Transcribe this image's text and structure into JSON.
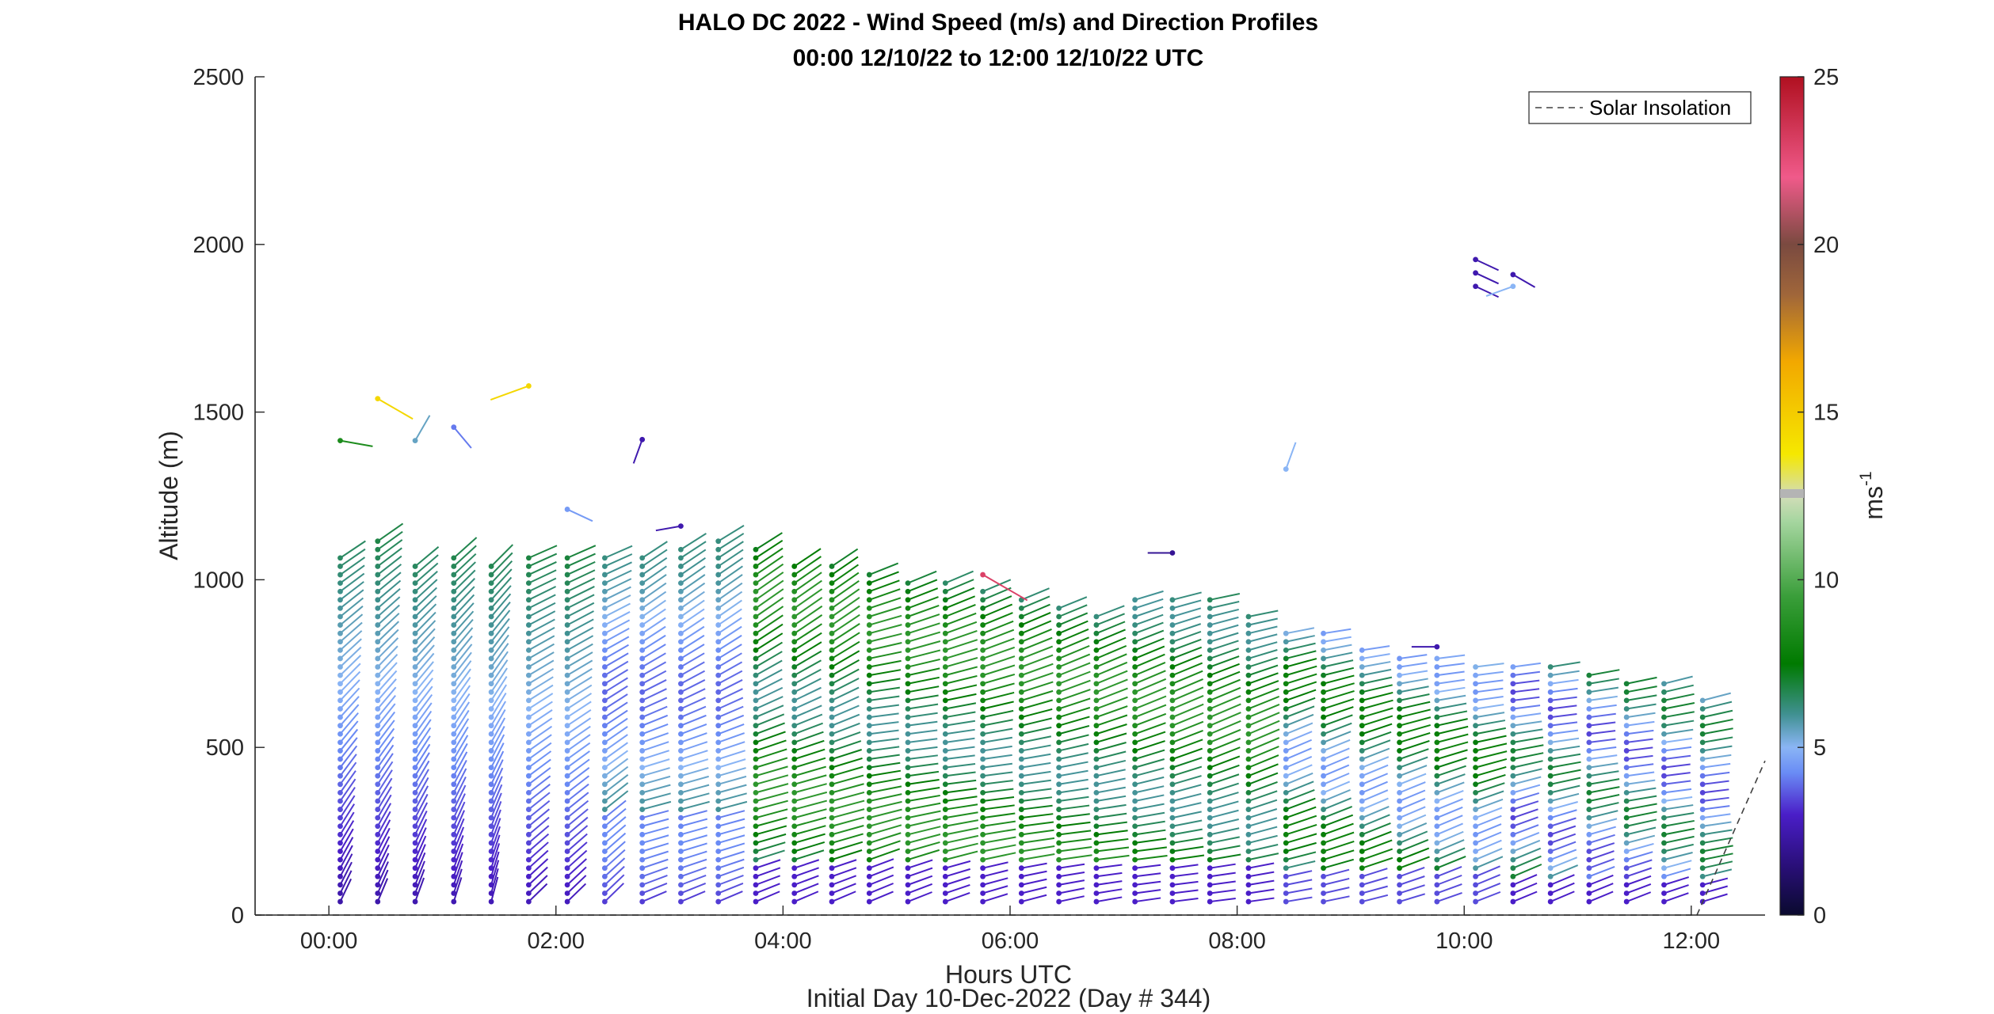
{
  "chart_data": {
    "type": "wind-barb-profile",
    "title": "HALO DC 2022 - Wind Speed (m/s) and Direction Profiles",
    "subtitle": "00:00 12/10/22 to 12:00 12/10/22  UTC",
    "xlabel": "Hours UTC",
    "xlabel2": "Initial Day 10-Dec-2022 (Day # 344)",
    "ylabel": "Altitude (m)",
    "colorbar_label_base": "ms",
    "colorbar_label_exp": "-1",
    "x_ticks": [
      "00:00",
      "02:00",
      "04:00",
      "06:00",
      "08:00",
      "10:00",
      "12:00"
    ],
    "x_tick_values": [
      0,
      2,
      4,
      6,
      8,
      10,
      12
    ],
    "xlim": [
      -0.65,
      12.65
    ],
    "y_ticks": [
      "0",
      "500",
      "1000",
      "1500",
      "2000",
      "2500"
    ],
    "y_tick_values": [
      0,
      500,
      1000,
      1500,
      2000,
      2500
    ],
    "ylim": [
      0,
      2500
    ],
    "colorbar_ticks": [
      "0",
      "5",
      "10",
      "15",
      "20",
      "25"
    ],
    "colorbar_tick_values": [
      0,
      5,
      10,
      15,
      20,
      25
    ],
    "colorbar_range": [
      0,
      25
    ],
    "legend": {
      "position": "top-right",
      "entries": [
        {
          "label": "Solar Insolation",
          "style": "dashed",
          "color": "#404040"
        }
      ]
    },
    "series": [
      {
        "name": "Solar Insolation",
        "type": "line",
        "style": "dashed",
        "x": [
          -0.65,
          12.05,
          12.65
        ],
        "y": [
          0,
          0,
          460
        ]
      }
    ],
    "profile_times": [
      0.1,
      0.43,
      0.76,
      1.1,
      1.43,
      1.76,
      2.1,
      2.43,
      2.76,
      3.1,
      3.43,
      3.76,
      4.1,
      4.43,
      4.76,
      5.1,
      5.43,
      5.76,
      6.1,
      6.43,
      6.76,
      7.1,
      7.43,
      7.76,
      8.1,
      8.43,
      8.76,
      9.1,
      9.43,
      9.76,
      10.1,
      10.43,
      10.76,
      11.1,
      11.43,
      11.76,
      12.1
    ],
    "profile_tops": [
      1080,
      1120,
      1050,
      1070,
      1050,
      1070,
      1080,
      1080,
      1080,
      1100,
      1120,
      1090,
      1060,
      1040,
      1020,
      1010,
      990,
      980,
      950,
      930,
      910,
      950,
      950,
      950,
      900,
      860,
      840,
      800,
      780,
      780,
      760,
      760,
      740,
      720,
      700,
      700,
      650
    ],
    "isolated_barbs": [
      {
        "t": 0.1,
        "alt": 1415,
        "speed": 8.5,
        "dir": 280
      },
      {
        "t": 0.43,
        "alt": 1540,
        "speed": 14.5,
        "dir": 300
      },
      {
        "t": 0.76,
        "alt": 1415,
        "speed": 5.5,
        "dir": 210
      },
      {
        "t": 1.1,
        "alt": 1455,
        "speed": 4.0,
        "dir": 320
      },
      {
        "t": 1.76,
        "alt": 1578,
        "speed": 14.5,
        "dir": 70
      },
      {
        "t": 2.1,
        "alt": 1210,
        "speed": 4.5,
        "dir": 295
      },
      {
        "t": 2.76,
        "alt": 1418,
        "speed": 2.5,
        "dir": 20
      },
      {
        "t": 3.1,
        "alt": 1160,
        "speed": 2.5,
        "dir": 80
      },
      {
        "t": 5.76,
        "alt": 1015,
        "speed": 23.0,
        "dir": 300
      },
      {
        "t": 7.43,
        "alt": 1080,
        "speed": 2.0,
        "dir": 90
      },
      {
        "t": 8.43,
        "alt": 1330,
        "speed": 5.0,
        "dir": 200
      },
      {
        "t": 10.1,
        "alt": 1955,
        "speed": 2.5,
        "dir": 295
      },
      {
        "t": 10.1,
        "alt": 1915,
        "speed": 2.5,
        "dir": 295
      },
      {
        "t": 10.1,
        "alt": 1875,
        "speed": 2.5,
        "dir": 295
      },
      {
        "t": 10.43,
        "alt": 1910,
        "speed": 2.5,
        "dir": 300
      },
      {
        "t": 10.43,
        "alt": 1875,
        "speed": 5.0,
        "dir": 70
      },
      {
        "t": 9.76,
        "alt": 800,
        "speed": 2.5,
        "dir": 90
      }
    ]
  }
}
